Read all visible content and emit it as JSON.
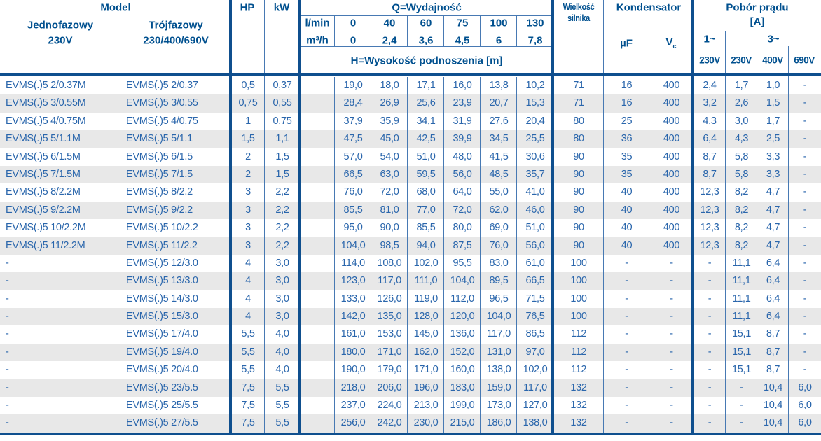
{
  "header": {
    "model": "Model",
    "model_single_title": "Jednofazowy",
    "model_single_sub": "230V",
    "model_three_title": "Trójfazowy",
    "model_three_sub": "230/400/690V",
    "hp": "HP",
    "kw": "kW",
    "q_title": "Q=Wydajność",
    "lmin_label": "l/min",
    "lmin_values": [
      "0",
      "40",
      "60",
      "75",
      "100",
      "130"
    ],
    "m3h_label": "m³/h",
    "m3h_values": [
      "0",
      "2,4",
      "3,6",
      "4,5",
      "6",
      "7,8"
    ],
    "h_title": "H=Wysokość podnoszenia [m]",
    "size_line1": "Wielkość",
    "size_line2": "silnika",
    "capacitor": "Kondensator",
    "uf": "µF",
    "vc_main": "V",
    "vc_sub": "c",
    "current_title": "Pobór prądu",
    "current_unit": "[A]",
    "one_phase": "1~",
    "three_phase": "3~",
    "volt_labels": [
      "230V",
      "230V",
      "400V",
      "690V"
    ]
  },
  "colors": {
    "header_text": "#00508f",
    "data_text": "#2a66ac",
    "thin_line": "#4779b3",
    "thick_line": "#0f4f8e",
    "stripe": "#e8e8e8"
  },
  "rows": [
    {
      "model_1ph": "EVMS(.)5 2/0.37M",
      "model_3ph": "EVMS(.)5 2/0.37",
      "hp": "0,5",
      "kw": "0,37",
      "h": [
        "19,0",
        "18,0",
        "17,1",
        "16,0",
        "13,8",
        "10,2"
      ],
      "size": "71",
      "uf": "16",
      "vc": "400",
      "amps": [
        "2,4",
        "1,7",
        "1,0",
        "-"
      ]
    },
    {
      "model_1ph": "EVMS(.)5 3/0.55M",
      "model_3ph": "EVMS(.)5 3/0.55",
      "hp": "0,75",
      "kw": "0,55",
      "h": [
        "28,4",
        "26,9",
        "25,6",
        "23,9",
        "20,7",
        "15,3"
      ],
      "size": "71",
      "uf": "16",
      "vc": "400",
      "amps": [
        "3,2",
        "2,6",
        "1,5",
        "-"
      ]
    },
    {
      "model_1ph": "EVMS(.)5 4/0.75M",
      "model_3ph": "EVMS(.)5 4/0.75",
      "hp": "1",
      "kw": "0,75",
      "h": [
        "37,9",
        "35,9",
        "34,1",
        "31,9",
        "27,6",
        "20,4"
      ],
      "size": "80",
      "uf": "25",
      "vc": "400",
      "amps": [
        "4,3",
        "3,0",
        "1,7",
        "-"
      ]
    },
    {
      "model_1ph": "EVMS(.)5 5/1.1M",
      "model_3ph": "EVMS(.)5 5/1.1",
      "hp": "1,5",
      "kw": "1,1",
      "h": [
        "47,5",
        "45,0",
        "42,5",
        "39,9",
        "34,5",
        "25,5"
      ],
      "size": "80",
      "uf": "36",
      "vc": "400",
      "amps": [
        "6,4",
        "4,3",
        "2,5",
        "-"
      ]
    },
    {
      "model_1ph": "EVMS(.)5 6/1.5M",
      "model_3ph": "EVMS(.)5 6/1.5",
      "hp": "2",
      "kw": "1,5",
      "h": [
        "57,0",
        "54,0",
        "51,0",
        "48,0",
        "41,5",
        "30,6"
      ],
      "size": "90",
      "uf": "35",
      "vc": "400",
      "amps": [
        "8,7",
        "5,8",
        "3,3",
        "-"
      ]
    },
    {
      "model_1ph": "EVMS(.)5 7/1.5M",
      "model_3ph": "EVMS(.)5 7/1.5",
      "hp": "2",
      "kw": "1,5",
      "h": [
        "66,5",
        "63,0",
        "59,5",
        "56,0",
        "48,5",
        "35,7"
      ],
      "size": "90",
      "uf": "35",
      "vc": "400",
      "amps": [
        "8,7",
        "5,8",
        "3,3",
        "-"
      ]
    },
    {
      "model_1ph": "EVMS(.)5 8/2.2M",
      "model_3ph": "EVMS(.)5 8/2.2",
      "hp": "3",
      "kw": "2,2",
      "h": [
        "76,0",
        "72,0",
        "68,0",
        "64,0",
        "55,0",
        "41,0"
      ],
      "size": "90",
      "uf": "40",
      "vc": "400",
      "amps": [
        "12,3",
        "8,2",
        "4,7",
        "-"
      ]
    },
    {
      "model_1ph": "EVMS(.)5 9/2.2M",
      "model_3ph": "EVMS(.)5 9/2.2",
      "hp": "3",
      "kw": "2,2",
      "h": [
        "85,5",
        "81,0",
        "77,0",
        "72,0",
        "62,0",
        "46,0"
      ],
      "size": "90",
      "uf": "40",
      "vc": "400",
      "amps": [
        "12,3",
        "8,2",
        "4,7",
        "-"
      ]
    },
    {
      "model_1ph": "EVMS(.)5 10/2.2M",
      "model_3ph": "EVMS(.)5 10/2.2",
      "hp": "3",
      "kw": "2,2",
      "h": [
        "95,0",
        "90,0",
        "85,5",
        "80,0",
        "69,0",
        "51,0"
      ],
      "size": "90",
      "uf": "40",
      "vc": "400",
      "amps": [
        "12,3",
        "8,2",
        "4,7",
        "-"
      ]
    },
    {
      "model_1ph": "EVMS(.)5 11/2.2M",
      "model_3ph": "EVMS(.)5 11/2.2",
      "hp": "3",
      "kw": "2,2",
      "h": [
        "104,0",
        "98,5",
        "94,0",
        "87,5",
        "76,0",
        "56,0"
      ],
      "size": "90",
      "uf": "40",
      "vc": "400",
      "amps": [
        "12,3",
        "8,2",
        "4,7",
        "-"
      ]
    },
    {
      "model_1ph": "-",
      "model_3ph": "EVMS(.)5 12/3.0",
      "hp": "4",
      "kw": "3,0",
      "h": [
        "114,0",
        "108,0",
        "102,0",
        "95,5",
        "83,0",
        "61,0"
      ],
      "size": "100",
      "uf": "-",
      "vc": "-",
      "amps": [
        "-",
        "11,1",
        "6,4",
        "-"
      ]
    },
    {
      "model_1ph": "-",
      "model_3ph": "EVMS(.)5 13/3.0",
      "hp": "4",
      "kw": "3,0",
      "h": [
        "123,0",
        "117,0",
        "111,0",
        "104,0",
        "89,5",
        "66,5"
      ],
      "size": "100",
      "uf": "-",
      "vc": "-",
      "amps": [
        "-",
        "11,1",
        "6,4",
        "-"
      ]
    },
    {
      "model_1ph": "-",
      "model_3ph": "EVMS(.)5 14/3.0",
      "hp": "4",
      "kw": "3,0",
      "h": [
        "133,0",
        "126,0",
        "119,0",
        "112,0",
        "96,5",
        "71,5"
      ],
      "size": "100",
      "uf": "-",
      "vc": "-",
      "amps": [
        "-",
        "11,1",
        "6,4",
        "-"
      ]
    },
    {
      "model_1ph": "-",
      "model_3ph": "EVMS(.)5 15/3.0",
      "hp": "4",
      "kw": "3,0",
      "h": [
        "142,0",
        "135,0",
        "128,0",
        "120,0",
        "104,0",
        "76,5"
      ],
      "size": "100",
      "uf": "-",
      "vc": "-",
      "amps": [
        "-",
        "11,1",
        "6,4",
        "-"
      ]
    },
    {
      "model_1ph": "-",
      "model_3ph": "EVMS(.)5 17/4.0",
      "hp": "5,5",
      "kw": "4,0",
      "h": [
        "161,0",
        "153,0",
        "145,0",
        "136,0",
        "117,0",
        "86,5"
      ],
      "size": "112",
      "uf": "-",
      "vc": "-",
      "amps": [
        "-",
        "15,1",
        "8,7",
        "-"
      ]
    },
    {
      "model_1ph": "-",
      "model_3ph": "EVMS(.)5 19/4.0",
      "hp": "5,5",
      "kw": "4,0",
      "h": [
        "180,0",
        "171,0",
        "162,0",
        "152,0",
        "131,0",
        "97,0"
      ],
      "size": "112",
      "uf": "-",
      "vc": "-",
      "amps": [
        "-",
        "15,1",
        "8,7",
        "-"
      ]
    },
    {
      "model_1ph": "-",
      "model_3ph": "EVMS(.)5 20/4.0",
      "hp": "5,5",
      "kw": "4,0",
      "h": [
        "190,0",
        "179,0",
        "171,0",
        "160,0",
        "138,0",
        "102,0"
      ],
      "size": "112",
      "uf": "-",
      "vc": "-",
      "amps": [
        "-",
        "15,1",
        "8,7",
        "-"
      ]
    },
    {
      "model_1ph": "-",
      "model_3ph": "EVMS(.)5 23/5.5",
      "hp": "7,5",
      "kw": "5,5",
      "h": [
        "218,0",
        "206,0",
        "196,0",
        "183,0",
        "159,0",
        "117,0"
      ],
      "size": "132",
      "uf": "-",
      "vc": "-",
      "amps": [
        "-",
        "-",
        "10,4",
        "6,0"
      ]
    },
    {
      "model_1ph": "-",
      "model_3ph": "EVMS(.)5 25/5.5",
      "hp": "7,5",
      "kw": "5,5",
      "h": [
        "237,0",
        "224,0",
        "213,0",
        "199,0",
        "173,0",
        "127,0"
      ],
      "size": "132",
      "uf": "-",
      "vc": "-",
      "amps": [
        "-",
        "-",
        "10,4",
        "6,0"
      ]
    },
    {
      "model_1ph": "-",
      "model_3ph": "EVMS(.)5 27/5.5",
      "hp": "7,5",
      "kw": "5,5",
      "h": [
        "256,0",
        "242,0",
        "230,0",
        "215,0",
        "186,0",
        "138,0"
      ],
      "size": "132",
      "uf": "-",
      "vc": "-",
      "amps": [
        "-",
        "-",
        "10,4",
        "6,0"
      ]
    }
  ]
}
